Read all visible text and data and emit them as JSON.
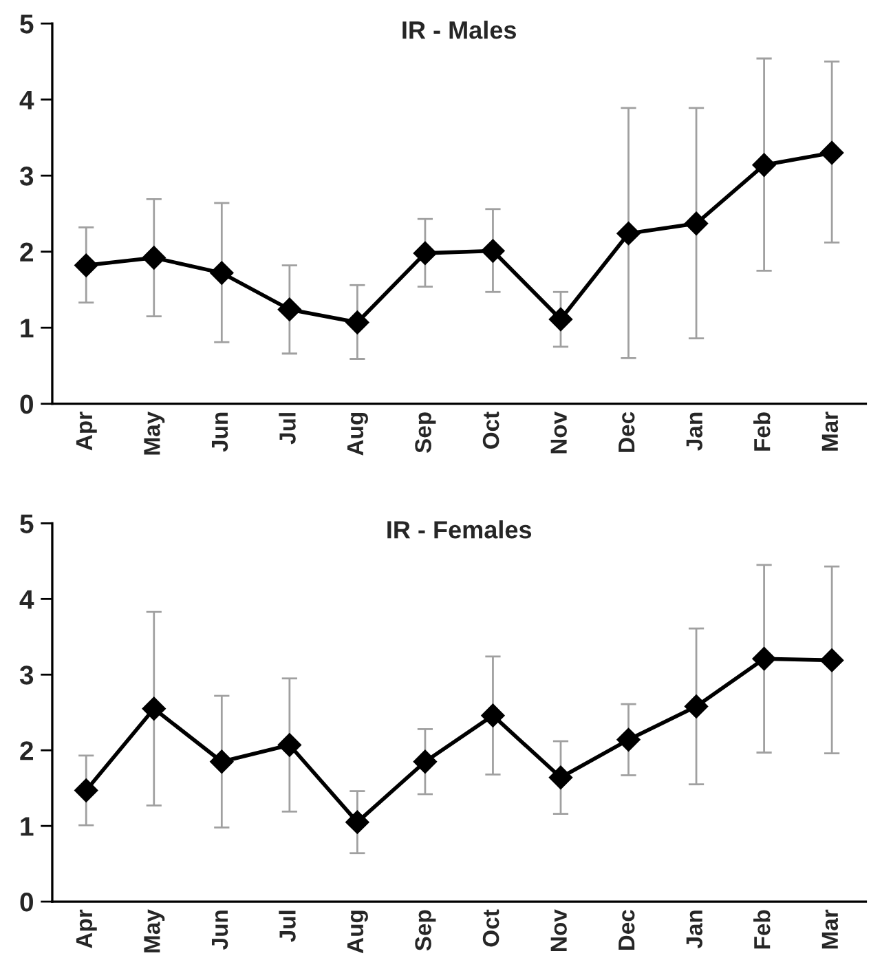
{
  "chart_data": [
    {
      "type": "line",
      "title": "IR - Males",
      "categories": [
        "Apr",
        "May",
        "Jun",
        "Jul",
        "Aug",
        "Sep",
        "Oct",
        "Nov",
        "Dec",
        "Jan",
        "Feb",
        "Mar"
      ],
      "series": [
        {
          "color": "#000000",
          "values": [
            1.82,
            1.92,
            1.72,
            1.24,
            1.07,
            1.98,
            2.01,
            1.11,
            2.24,
            2.37,
            3.14,
            3.3
          ],
          "errors": [
            [
              1.33,
              2.32
            ],
            [
              1.15,
              2.69
            ],
            [
              0.81,
              2.64
            ],
            [
              0.66,
              1.82
            ],
            [
              0.59,
              1.56
            ],
            [
              1.54,
              2.43
            ],
            [
              1.47,
              2.56
            ],
            [
              0.75,
              1.47
            ],
            [
              0.6,
              3.89
            ],
            [
              0.86,
              3.89
            ],
            [
              1.75,
              4.54
            ],
            [
              2.12,
              4.5
            ]
          ]
        }
      ],
      "ylim": [
        0,
        5
      ],
      "yticks": [
        0,
        1,
        2,
        3,
        4,
        5
      ],
      "marker": "diamond",
      "line_style": "solid",
      "grid": false,
      "legend": false
    },
    {
      "type": "line",
      "title": "IR - Females",
      "categories": [
        "Apr",
        "May",
        "Jun",
        "Jul",
        "Aug",
        "Sep",
        "Oct",
        "Nov",
        "Dec",
        "Jan",
        "Feb",
        "Mar"
      ],
      "series": [
        {
          "color": "#000000",
          "values": [
            1.47,
            2.55,
            1.85,
            2.07,
            1.05,
            1.85,
            2.46,
            1.64,
            2.14,
            2.58,
            3.21,
            3.19
          ],
          "errors": [
            [
              1.01,
              1.93
            ],
            [
              1.27,
              3.83
            ],
            [
              0.98,
              2.72
            ],
            [
              1.19,
              2.95
            ],
            [
              0.64,
              1.46
            ],
            [
              1.42,
              2.28
            ],
            [
              1.68,
              3.24
            ],
            [
              1.16,
              2.12
            ],
            [
              1.67,
              2.61
            ],
            [
              1.55,
              3.61
            ],
            [
              1.97,
              4.45
            ],
            [
              1.96,
              4.43
            ]
          ]
        }
      ],
      "ylim": [
        0,
        5
      ],
      "yticks": [
        0,
        1,
        2,
        3,
        4,
        5
      ],
      "marker": "diamond",
      "line_style": "solid",
      "grid": false,
      "legend": false
    }
  ]
}
